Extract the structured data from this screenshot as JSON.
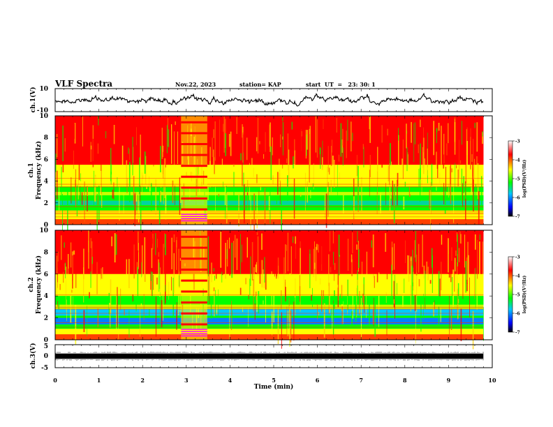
{
  "header": {
    "title": "VLF Spectra",
    "date": "Nov.22, 2023",
    "station": "station= KAP",
    "start": "start  UT  =   23: 30: 1"
  },
  "chart_data": [
    {
      "type": "line",
      "panel": "ch1-waveform",
      "ylabel": "ch.1(V)",
      "ylim": [
        -10,
        10
      ],
      "yticks": [
        "10",
        "-10"
      ],
      "xlim": [
        0,
        10
      ]
    },
    {
      "type": "heatmap",
      "panel": "ch1-spectrogram",
      "ylabel": "ch.1\nFrequency (kHz)",
      "ylabel_lines": [
        "ch.1",
        "Frequency  (kHz)"
      ],
      "ylim": [
        0,
        10
      ],
      "yticks": [
        "0",
        "2",
        "4",
        "6",
        "8",
        "10"
      ],
      "xlim": [
        0,
        10
      ],
      "data_end_min": 9.8,
      "colorbar": {
        "label": "log(PSD)(V²/Hz)",
        "range": [
          -7,
          -3
        ],
        "ticks": [
          "-3",
          "-4",
          "-5",
          "-6",
          "-7"
        ],
        "colors": [
          "#000000",
          "#0000ff",
          "#00c8ff",
          "#00ff00",
          "#ffff00",
          "#ff0000",
          "#ffffff"
        ]
      }
    },
    {
      "type": "heatmap",
      "panel": "ch2-spectrogram",
      "ylabel_lines": [
        "ch.2",
        "Frequency  (kHz)"
      ],
      "ylim": [
        0,
        10
      ],
      "yticks": [
        "0",
        "2",
        "4",
        "6",
        "8",
        "10"
      ],
      "xlim": [
        0,
        10
      ],
      "data_end_min": 9.8,
      "colorbar": {
        "label": "log(PSD)(V²/Hz)",
        "range": [
          -7,
          -3
        ],
        "ticks": [
          "-3",
          "-4",
          "-5",
          "-6",
          "-7"
        ]
      }
    },
    {
      "type": "line",
      "panel": "ch3-waveform",
      "ylabel": "ch.3(V)",
      "ylim": [
        -5,
        5
      ],
      "yticks": [
        "5",
        "0",
        "-5"
      ],
      "xlim": [
        0,
        10
      ],
      "xlabel": "Time  (min)",
      "xticks": [
        "0",
        "1",
        "2",
        "3",
        "4",
        "5",
        "6",
        "7",
        "8",
        "9",
        "10"
      ]
    }
  ]
}
